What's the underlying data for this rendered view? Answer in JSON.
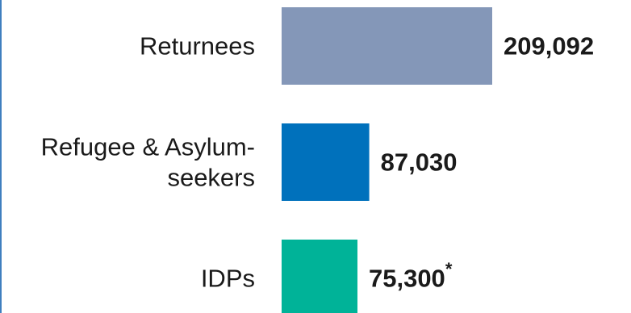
{
  "chart_data": {
    "type": "bar",
    "orientation": "horizontal",
    "categories": [
      "Returnees",
      "Refugee & Asylum-seekers",
      "IDPs"
    ],
    "category_label_lines": [
      [
        "Returnees"
      ],
      [
        "Refugee & Asylum-",
        "seekers"
      ],
      [
        "IDPs"
      ]
    ],
    "values": [
      209092,
      87030,
      75300
    ],
    "value_labels": [
      "209,092",
      "87,030",
      "75,300"
    ],
    "value_label_suffix": [
      "",
      "",
      "*"
    ],
    "colors": [
      "#8497b8",
      "#0071bc",
      "#00b398"
    ],
    "grid": false,
    "legend": "none"
  }
}
